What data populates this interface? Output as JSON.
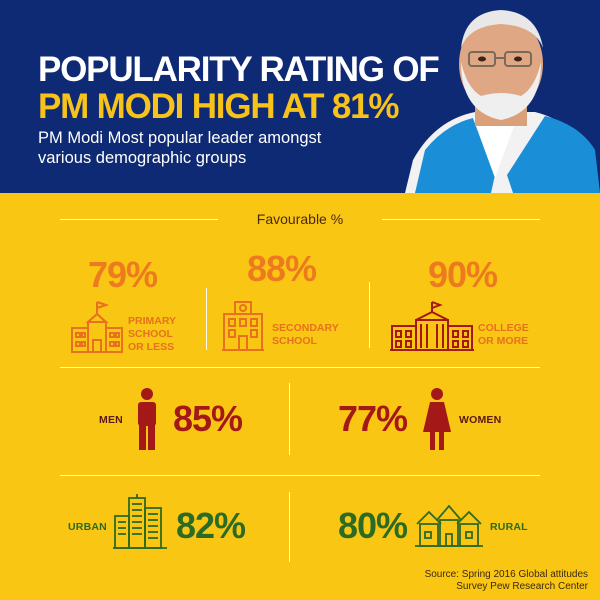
{
  "header": {
    "title_line1": "POPULARITY RATING OF",
    "title_line2": "PM MODI HIGH AT 81%",
    "subtitle": "PM Modi Most popular leader amongst various demographic groups"
  },
  "section_label": "Favourable %",
  "education": [
    {
      "value": "79%",
      "label": "PRIMARY\nSCHOOL\nOR LESS",
      "icon": "school-building-icon"
    },
    {
      "value": "88%",
      "label": "SECONDARY\nSCHOOL",
      "icon": "secondary-school-icon"
    },
    {
      "value": "90%",
      "label": "COLLEGE\nOR MORE",
      "icon": "college-building-icon"
    }
  ],
  "gender": [
    {
      "label": "MEN",
      "value": "85%",
      "icon": "man-icon"
    },
    {
      "label": "WOMEN",
      "value": "77%",
      "icon": "woman-icon"
    }
  ],
  "locality": [
    {
      "label": "URBAN",
      "value": "82%",
      "icon": "city-buildings-icon"
    },
    {
      "label": "RURAL",
      "value": "80%",
      "icon": "village-houses-icon"
    }
  ],
  "source": "Source: Spring 2016 Global attitudes Survey Pew Research Center",
  "colors": {
    "header_bg": "#0f2a74",
    "page_bg": "#f9c614",
    "orange": "#ee7a1f",
    "red": "#a51818",
    "green": "#2b6b23"
  }
}
